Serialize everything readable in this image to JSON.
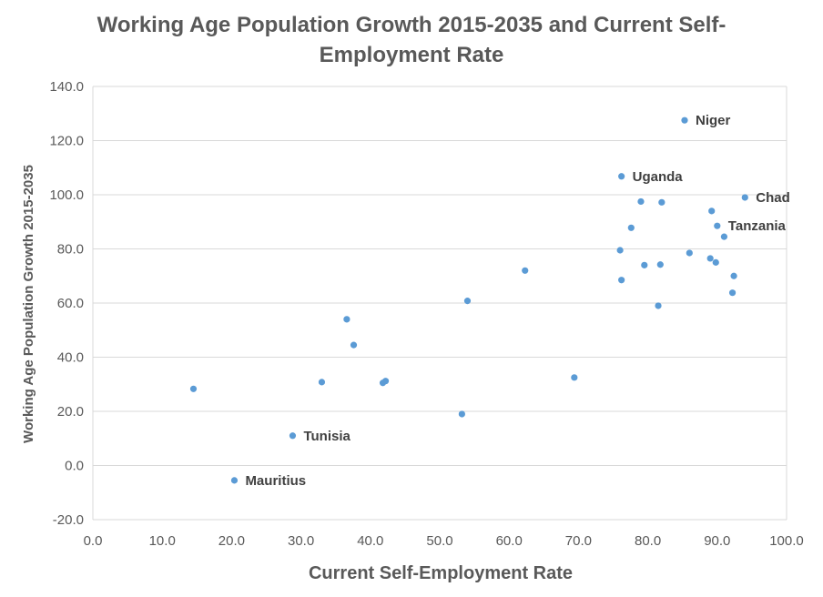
{
  "chart_data": {
    "type": "scatter",
    "title": "Working Age Population Growth 2015-2035 and Current Self-Employment Rate",
    "title_lines": [
      "Working Age Population Growth 2015-2035 and Current Self-",
      "Employment Rate"
    ],
    "xlabel": "Current Self-Employment Rate",
    "ylabel": "Working Age Population Growth 2015-2035",
    "xlim": [
      0,
      100
    ],
    "ylim": [
      -20,
      140
    ],
    "x_ticks": [
      "0.0",
      "10.0",
      "20.0",
      "30.0",
      "40.0",
      "50.0",
      "60.0",
      "70.0",
      "80.0",
      "90.0",
      "100.0"
    ],
    "y_ticks": [
      "-20.0",
      "0.0",
      "20.0",
      "40.0",
      "60.0",
      "80.0",
      "100.0",
      "120.0",
      "140.0"
    ],
    "grid": "horizontal",
    "legend": "none",
    "marker_color": "#5b9bd5",
    "grid_color": "#d9d9d9",
    "points": [
      {
        "x": 85.3,
        "y": 127.5,
        "label": "Niger"
      },
      {
        "x": 76.2,
        "y": 106.8,
        "label": "Uganda"
      },
      {
        "x": 94.0,
        "y": 99.0,
        "label": "Chad"
      },
      {
        "x": 90.0,
        "y": 88.5,
        "label": "Tanzania"
      },
      {
        "x": 28.8,
        "y": 11.0,
        "label": "Tunisia"
      },
      {
        "x": 20.4,
        "y": -5.5,
        "label": "Mauritius"
      },
      {
        "x": 79.0,
        "y": 97.5
      },
      {
        "x": 82.0,
        "y": 97.2
      },
      {
        "x": 89.2,
        "y": 94.0
      },
      {
        "x": 77.6,
        "y": 87.8
      },
      {
        "x": 91.0,
        "y": 84.5
      },
      {
        "x": 76.0,
        "y": 79.5
      },
      {
        "x": 86.0,
        "y": 78.5
      },
      {
        "x": 89.0,
        "y": 76.5
      },
      {
        "x": 89.8,
        "y": 75.0
      },
      {
        "x": 79.5,
        "y": 74.0
      },
      {
        "x": 81.8,
        "y": 74.2
      },
      {
        "x": 92.4,
        "y": 70.0
      },
      {
        "x": 62.3,
        "y": 72.0
      },
      {
        "x": 76.2,
        "y": 68.5
      },
      {
        "x": 92.2,
        "y": 63.8
      },
      {
        "x": 54.0,
        "y": 60.8
      },
      {
        "x": 81.5,
        "y": 59.0
      },
      {
        "x": 36.6,
        "y": 54.0
      },
      {
        "x": 37.6,
        "y": 44.5
      },
      {
        "x": 69.4,
        "y": 32.5
      },
      {
        "x": 42.2,
        "y": 31.2
      },
      {
        "x": 41.8,
        "y": 30.5
      },
      {
        "x": 33.0,
        "y": 30.8
      },
      {
        "x": 14.5,
        "y": 28.3
      },
      {
        "x": 53.2,
        "y": 19.0
      }
    ]
  }
}
